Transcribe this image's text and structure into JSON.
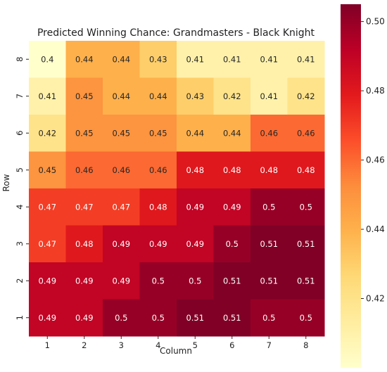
{
  "chart_data": {
    "type": "heatmap",
    "title": "Predicted Winning Chance: Grandmasters - Black Knight",
    "xlabel": "Column",
    "ylabel": "Row",
    "x_categories": [
      "1",
      "2",
      "3",
      "4",
      "5",
      "6",
      "7",
      "8"
    ],
    "y_categories": [
      "8",
      "7",
      "6",
      "5",
      "4",
      "3",
      "2",
      "1"
    ],
    "values": [
      [
        0.4,
        0.44,
        0.44,
        0.43,
        0.41,
        0.41,
        0.41,
        0.41
      ],
      [
        0.41,
        0.45,
        0.44,
        0.44,
        0.43,
        0.42,
        0.41,
        0.42
      ],
      [
        0.42,
        0.45,
        0.45,
        0.45,
        0.44,
        0.44,
        0.46,
        0.46
      ],
      [
        0.45,
        0.46,
        0.46,
        0.46,
        0.48,
        0.48,
        0.48,
        0.48
      ],
      [
        0.47,
        0.47,
        0.47,
        0.48,
        0.49,
        0.49,
        0.5,
        0.5
      ],
      [
        0.47,
        0.48,
        0.49,
        0.49,
        0.49,
        0.5,
        0.51,
        0.51
      ],
      [
        0.49,
        0.49,
        0.49,
        0.5,
        0.5,
        0.51,
        0.51,
        0.51
      ],
      [
        0.49,
        0.49,
        0.5,
        0.5,
        0.51,
        0.51,
        0.5,
        0.5
      ]
    ],
    "cell_labels": [
      [
        "0.4",
        "0.44",
        "0.44",
        "0.43",
        "0.41",
        "0.41",
        "0.41",
        "0.41"
      ],
      [
        "0.41",
        "0.45",
        "0.44",
        "0.44",
        "0.43",
        "0.42",
        "0.41",
        "0.42"
      ],
      [
        "0.42",
        "0.45",
        "0.45",
        "0.45",
        "0.44",
        "0.44",
        "0.46",
        "0.46"
      ],
      [
        "0.45",
        "0.46",
        "0.46",
        "0.46",
        "0.48",
        "0.48",
        "0.48",
        "0.48"
      ],
      [
        "0.47",
        "0.47",
        "0.47",
        "0.48",
        "0.49",
        "0.49",
        "0.5",
        "0.5"
      ],
      [
        "0.47",
        "0.48",
        "0.49",
        "0.49",
        "0.49",
        "0.5",
        "0.51",
        "0.51"
      ],
      [
        "0.49",
        "0.49",
        "0.49",
        "0.5",
        "0.5",
        "0.51",
        "0.51",
        "0.51"
      ],
      [
        "0.49",
        "0.49",
        "0.5",
        "0.5",
        "0.51",
        "0.51",
        "0.5",
        "0.5"
      ]
    ],
    "colormap": "YlOrRd",
    "colorbar": {
      "range": [
        0.4,
        0.505
      ],
      "ticks": [
        0.42,
        0.44,
        0.46,
        0.48,
        0.5
      ],
      "tick_labels": [
        "0.42",
        "0.44",
        "0.46",
        "0.48",
        "0.50"
      ]
    },
    "colormap_stops": [
      "#ffffcc",
      "#ffeda0",
      "#fed976",
      "#feb24c",
      "#fd8d3c",
      "#fc4e2a",
      "#e31a1c",
      "#bd0026",
      "#800026"
    ]
  }
}
